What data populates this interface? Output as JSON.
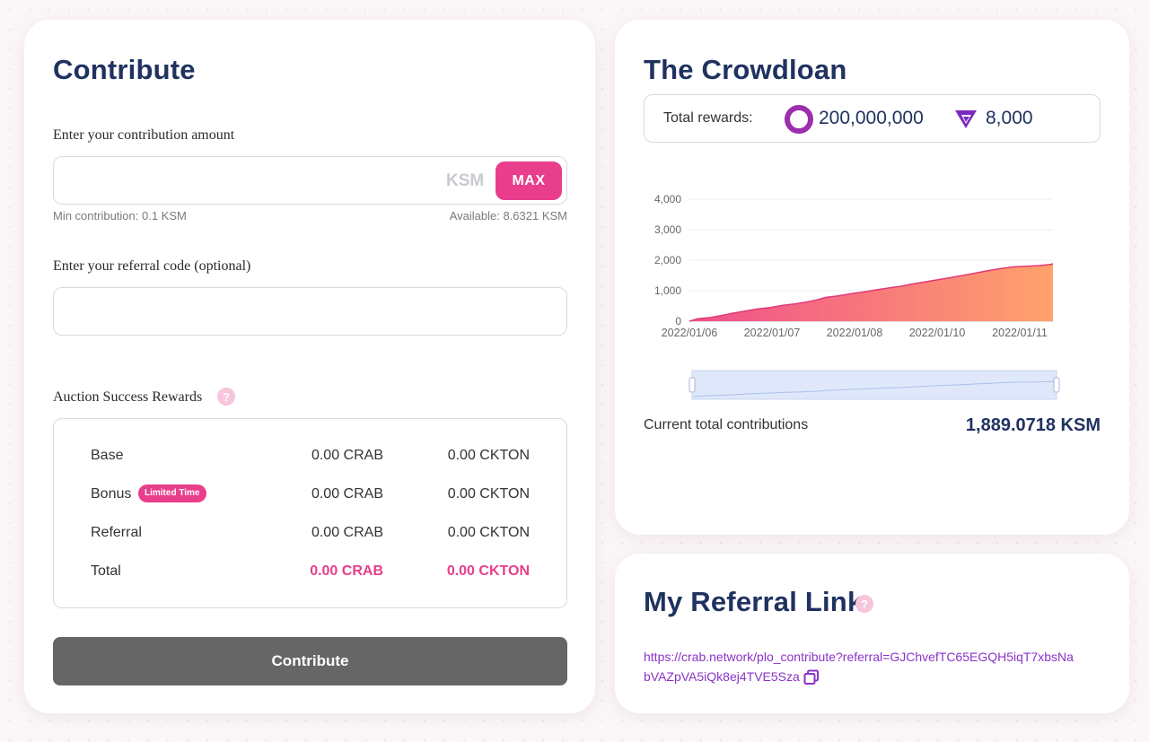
{
  "contribute": {
    "title": "Contribute",
    "amount_label": "Enter your contribution amount",
    "amount_value": "",
    "amount_unit": "KSM",
    "max_label": "MAX",
    "min_note": "Min contribution: 0.1 KSM",
    "available_note": "Available: 8.6321 KSM",
    "referral_label": "Enter your referral code (optional)",
    "referral_value": "",
    "rewards_title": "Auction Success Rewards",
    "help_glyph": "?",
    "rows": [
      {
        "label": "Base",
        "crab": "0.00 CRAB",
        "ckton": "0.00 CKTON"
      },
      {
        "label": "Bonus",
        "badge": "Limited Time",
        "crab": "0.00 CRAB",
        "ckton": "0.00 CKTON"
      },
      {
        "label": "Referral",
        "crab": "0.00 CRAB",
        "ckton": "0.00 CKTON"
      },
      {
        "label": "Total",
        "crab": "0.00 CRAB",
        "ckton": "0.00 CKTON"
      }
    ],
    "button_label": "Contribute"
  },
  "crowdloan": {
    "title": "The Crowdloan",
    "total_rewards_label": "Total rewards:",
    "crab_amount": "200,000,000",
    "ckton_amount": "8,000",
    "current_total_label": "Current total contributions",
    "current_total_value": "1,889.0718 KSM"
  },
  "referral": {
    "title": "My Referral Link",
    "help_glyph": "?",
    "link": "https://crab.network/plo_contribute?referral=GJChvefTC65EGQH5iqT7xbsNabVAZpVA5iQk8ej4TVE5Sza"
  },
  "colors": {
    "accent": "#e83e8c",
    "title": "#1f3260",
    "link": "#8a33c7",
    "crab_ring": "#9b2fae",
    "button_disabled": "#666666"
  },
  "icons": {
    "crab": "crab-token-icon",
    "ckton": "ckton-token-icon",
    "help": "help-icon",
    "copy": "copy-icon"
  },
  "chart_data": {
    "type": "area",
    "x_labels": [
      "2022/01/06",
      "2022/01/07",
      "2022/01/08",
      "2022/01/10",
      "2022/01/11"
    ],
    "y_ticks": [
      0,
      1000,
      2000,
      3000,
      4000
    ],
    "y_tick_labels": [
      "0",
      "1,000",
      "2,000",
      "3,000",
      "4,000"
    ],
    "ylim": [
      0,
      4000
    ],
    "grid": true,
    "points": [
      [
        0,
        0
      ],
      [
        0.2,
        80
      ],
      [
        0.5,
        120
      ],
      [
        0.8,
        200
      ],
      [
        1.0,
        260
      ],
      [
        1.3,
        330
      ],
      [
        1.6,
        400
      ],
      [
        1.9,
        450
      ],
      [
        2.2,
        520
      ],
      [
        2.5,
        570
      ],
      [
        2.8,
        640
      ],
      [
        3.0,
        700
      ],
      [
        3.2,
        780
      ],
      [
        3.5,
        830
      ],
      [
        3.8,
        900
      ],
      [
        4.1,
        960
      ],
      [
        4.4,
        1030
      ],
      [
        4.7,
        1090
      ],
      [
        5.0,
        1150
      ],
      [
        5.2,
        1210
      ],
      [
        5.5,
        1280
      ],
      [
        5.8,
        1350
      ],
      [
        6.1,
        1420
      ],
      [
        6.4,
        1490
      ],
      [
        6.7,
        1570
      ],
      [
        7.0,
        1650
      ],
      [
        7.3,
        1720
      ],
      [
        7.6,
        1780
      ],
      [
        8.2,
        1820
      ],
      [
        8.5,
        1860
      ],
      [
        8.55,
        1889
      ]
    ]
  }
}
